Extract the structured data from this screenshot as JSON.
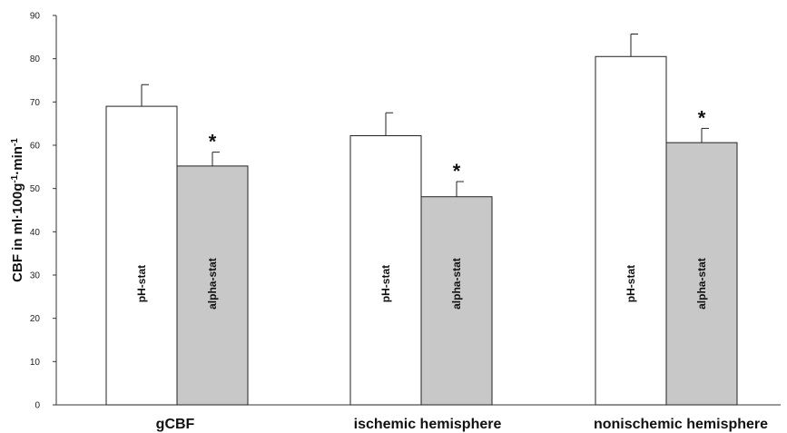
{
  "chart_data": {
    "type": "bar",
    "categories": [
      "gCBF",
      "ischemic hemisphere",
      "nonischemic hemisphere"
    ],
    "series": [
      {
        "name": "pH-stat",
        "values": [
          69,
          62.2,
          80.5
        ],
        "errors": [
          5,
          5.3,
          5.2
        ],
        "color": "#ffffff"
      },
      {
        "name": "alpha-stat",
        "values": [
          55.2,
          48.1,
          60.6
        ],
        "errors": [
          3.2,
          3.5,
          3.3
        ],
        "color": "#c8c8c8"
      }
    ],
    "significance": [
      "*",
      "*",
      "*"
    ],
    "ylabel_parts": {
      "main": "CBF in ml·100g",
      "exp1": "-1",
      "mid": "·min",
      "exp2": "-1"
    },
    "xlabel": "",
    "title": "",
    "ylim": [
      0,
      90
    ],
    "yticks": [
      0,
      10,
      20,
      30,
      40,
      50,
      60,
      70,
      80,
      90
    ],
    "grid": false,
    "legend": "none"
  }
}
